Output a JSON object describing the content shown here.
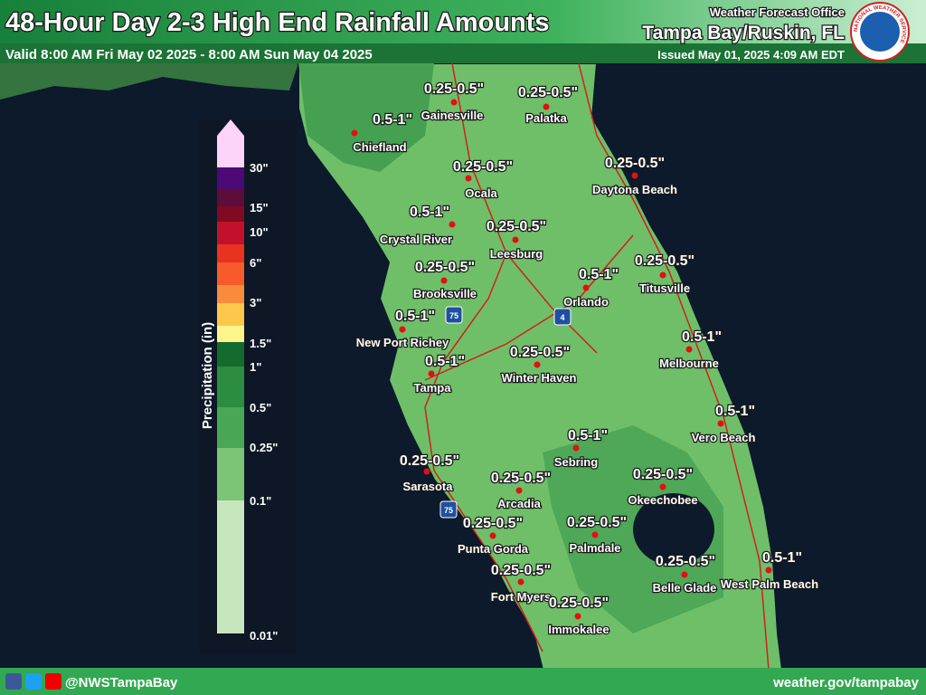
{
  "header": {
    "title": "48-Hour Day 2-3 High End Rainfall Amounts",
    "valid": "Valid 8:00 AM Fri May 02 2025 - 8:00 AM Sun May 04 2025",
    "office_label": "Weather Forecast Office",
    "office": "Tampa Bay/Ruskin, FL",
    "issued": "Issued May 01, 2025 4:09 AM EDT",
    "logo_text": "NATIONAL WEATHER SERVICE"
  },
  "legend": {
    "title": "Precipitation (in)",
    "labels": [
      "30\"",
      "15\"",
      "10\"",
      "6\"",
      "3\"",
      "1.5\"",
      "1\"",
      "0.5\"",
      "0.25\"",
      "0.1\"",
      "0.01\""
    ],
    "colors": [
      "#fcd3f9",
      "#4b0a75",
      "#5d0d3a",
      "#7f0a22",
      "#c4112b",
      "#e8331f",
      "#f75a2b",
      "#f98b3d",
      "#fdc74c",
      "#fdf58a",
      "#136b2d",
      "#2c8c3f",
      "#48a655",
      "#7cc476",
      "#c6e7bd"
    ]
  },
  "map": {
    "shields": [
      "75",
      "4",
      "75"
    ],
    "cities": [
      {
        "name": "Gainesville",
        "amount": "0.25-0.5\""
      },
      {
        "name": "Palatka",
        "amount": "0.25-0.5\""
      },
      {
        "name": "Chiefland",
        "amount": "0.5-1\""
      },
      {
        "name": "Daytona Beach",
        "amount": "0.25-0.5\""
      },
      {
        "name": "Ocala",
        "amount": "0.25-0.5\""
      },
      {
        "name": "Crystal River",
        "amount": "0.5-1\""
      },
      {
        "name": "Leesburg",
        "amount": "0.25-0.5\""
      },
      {
        "name": "Brooksville",
        "amount": "0.25-0.5\""
      },
      {
        "name": "Titusville",
        "amount": "0.25-0.5\""
      },
      {
        "name": "Orlando",
        "amount": "0.5-1\""
      },
      {
        "name": "New Port Richey",
        "amount": "0.5-1\""
      },
      {
        "name": "Melbourne",
        "amount": "0.5-1\""
      },
      {
        "name": "Winter Haven",
        "amount": "0.25-0.5\""
      },
      {
        "name": "Tampa",
        "amount": "0.5-1\""
      },
      {
        "name": "Vero Beach",
        "amount": "0.5-1\""
      },
      {
        "name": "Sebring",
        "amount": "0.5-1\""
      },
      {
        "name": "Sarasota",
        "amount": "0.25-0.5\""
      },
      {
        "name": "Okeechobee",
        "amount": "0.25-0.5\""
      },
      {
        "name": "Arcadia",
        "amount": "0.25-0.5\""
      },
      {
        "name": "Punta Gorda",
        "amount": "0.25-0.5\""
      },
      {
        "name": "Palmdale",
        "amount": "0.25-0.5\""
      },
      {
        "name": "West Palm Beach",
        "amount": "0.5-1\""
      },
      {
        "name": "Belle Glade",
        "amount": "0.25-0.5\""
      },
      {
        "name": "Fort Myers",
        "amount": "0.25-0.5\""
      },
      {
        "name": "Immokalee",
        "amount": "0.25-0.5\""
      }
    ]
  },
  "footer": {
    "handle": "@NWSTampaBay",
    "url": "weather.gov/tampabay"
  }
}
